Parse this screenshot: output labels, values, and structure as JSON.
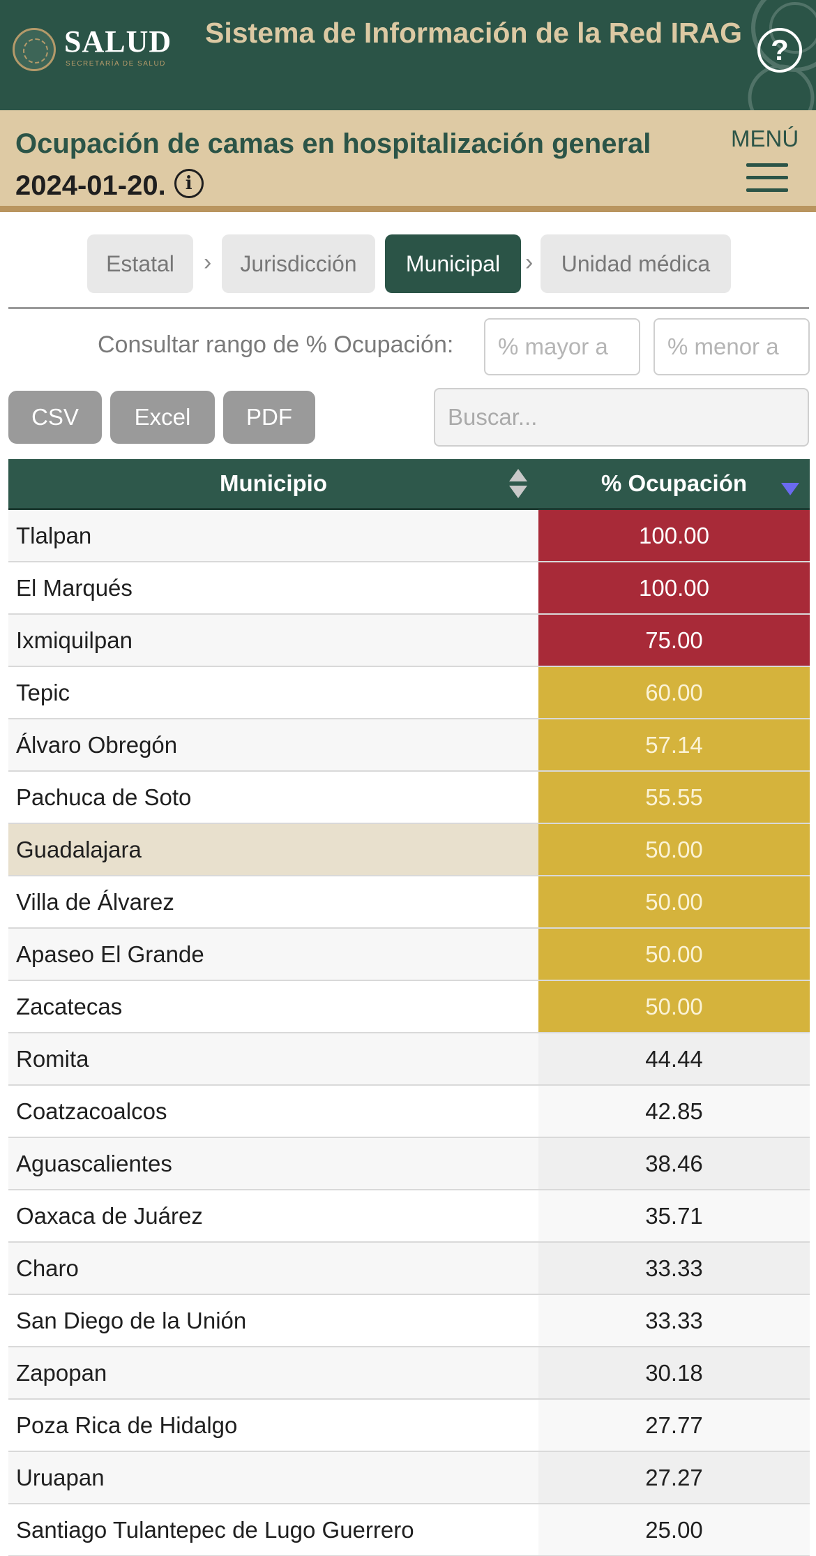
{
  "header": {
    "logo_text": "SALUD",
    "logo_subtitle": "SECRETARÍA DE SALUD",
    "system_title": "Sistema de Información de la Red IRAG",
    "help_symbol": "?",
    "help_icon": "question-circle-icon"
  },
  "page": {
    "title": "Ocupación de camas en hospitalización general",
    "date": "2024-01-20.",
    "info_symbol": "i",
    "menu_label": "MENÚ"
  },
  "breadcrumb": {
    "items": [
      {
        "label": "Estatal"
      },
      {
        "label": "Jurisdicción"
      },
      {
        "label": "Municipal"
      },
      {
        "label": "Unidad médica"
      }
    ],
    "separator": "›",
    "active_index": 2
  },
  "range_filter": {
    "label": "Consultar rango de % Ocupación:",
    "min_placeholder": "% mayor a",
    "max_placeholder": "% menor a"
  },
  "export": {
    "csv": "CSV",
    "excel": "Excel",
    "pdf": "PDF"
  },
  "search": {
    "placeholder": "Buscar..."
  },
  "colors": {
    "brand_green": "#2b5447",
    "brand_beige": "#decaa4",
    "high_occupancy": "#a82a38",
    "medium_occupancy": "#d5b33c",
    "hover_row": "#e8e0cd"
  },
  "table": {
    "headers": {
      "municipio": "Municipio",
      "ocupacion": "% Ocupación"
    },
    "sort": {
      "column": "ocupacion",
      "direction": "desc"
    },
    "rows": [
      {
        "municipio": "Tlalpan",
        "ocupacion": "100.00",
        "level": "high"
      },
      {
        "municipio": "El Marqués",
        "ocupacion": "100.00",
        "level": "high"
      },
      {
        "municipio": "Ixmiquilpan",
        "ocupacion": "75.00",
        "level": "high"
      },
      {
        "municipio": "Tepic",
        "ocupacion": "60.00",
        "level": "medium"
      },
      {
        "municipio": "Álvaro Obregón",
        "ocupacion": "57.14",
        "level": "medium"
      },
      {
        "municipio": "Pachuca de Soto",
        "ocupacion": "55.55",
        "level": "medium"
      },
      {
        "municipio": "Guadalajara",
        "ocupacion": "50.00",
        "level": "medium",
        "highlighted": true
      },
      {
        "municipio": "Villa de Álvarez",
        "ocupacion": "50.00",
        "level": "medium"
      },
      {
        "municipio": "Apaseo El Grande",
        "ocupacion": "50.00",
        "level": "medium"
      },
      {
        "municipio": "Zacatecas",
        "ocupacion": "50.00",
        "level": "medium"
      },
      {
        "municipio": "Romita",
        "ocupacion": "44.44",
        "level": "low"
      },
      {
        "municipio": "Coatzacoalcos",
        "ocupacion": "42.85",
        "level": "low"
      },
      {
        "municipio": "Aguascalientes",
        "ocupacion": "38.46",
        "level": "low"
      },
      {
        "municipio": "Oaxaca de Juárez",
        "ocupacion": "35.71",
        "level": "low"
      },
      {
        "municipio": "Charo",
        "ocupacion": "33.33",
        "level": "low"
      },
      {
        "municipio": "San Diego de la Unión",
        "ocupacion": "33.33",
        "level": "low"
      },
      {
        "municipio": "Zapopan",
        "ocupacion": "30.18",
        "level": "low"
      },
      {
        "municipio": "Poza Rica de Hidalgo",
        "ocupacion": "27.77",
        "level": "low"
      },
      {
        "municipio": "Uruapan",
        "ocupacion": "27.27",
        "level": "low"
      },
      {
        "municipio": "Santiago Tulantepec de Lugo Guerrero",
        "ocupacion": "25.00",
        "level": "low"
      }
    ]
  }
}
